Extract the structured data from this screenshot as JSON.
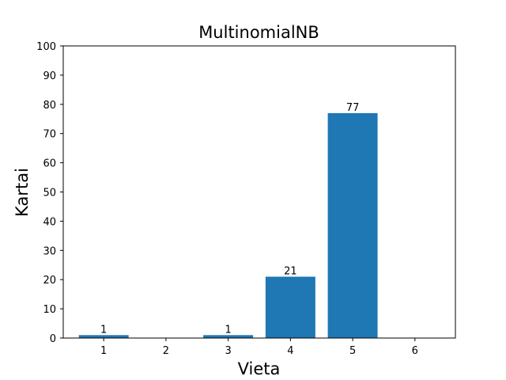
{
  "chart_data": {
    "type": "bar",
    "title": "MultinomialNB",
    "xlabel": "Vieta",
    "ylabel": "Kartai",
    "categories": [
      "1",
      "2",
      "3",
      "4",
      "5",
      "6"
    ],
    "x": [
      1,
      2,
      3,
      4,
      5,
      6
    ],
    "values": [
      1,
      0,
      1,
      21,
      77,
      0
    ],
    "data_labels": [
      "1",
      "",
      "1",
      "21",
      "77",
      ""
    ],
    "ylim": [
      0,
      100
    ],
    "yticks": [
      0,
      10,
      20,
      30,
      40,
      50,
      60,
      70,
      80,
      90,
      100
    ],
    "grid": false,
    "bar_color": "#1f77b4"
  }
}
